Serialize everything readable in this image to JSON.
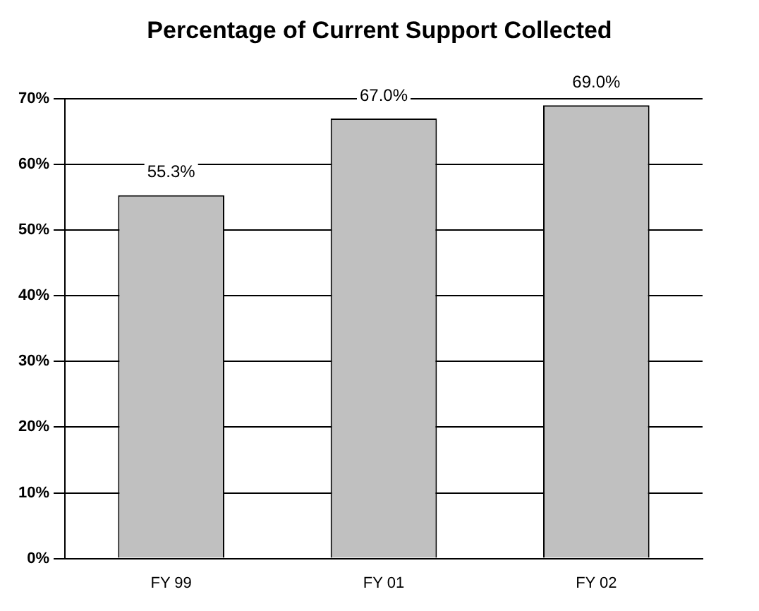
{
  "chart_data": {
    "type": "bar",
    "title": "Percentage of Current Support Collected",
    "categories": [
      "FY 99",
      "FY 01",
      "FY 02"
    ],
    "values": [
      55.3,
      67.0,
      69.0
    ],
    "value_labels": [
      "55.3%",
      "67.0%",
      "69.0%"
    ],
    "color": "#c0c0c0",
    "ylim": [
      0,
      70
    ],
    "yticks": [
      {
        "value": 0,
        "label": "0%"
      },
      {
        "value": 10,
        "label": "10%"
      },
      {
        "value": 20,
        "label": "20%"
      },
      {
        "value": 30,
        "label": "30%"
      },
      {
        "value": 40,
        "label": "40%"
      },
      {
        "value": 50,
        "label": "50%"
      },
      {
        "value": 60,
        "label": "60%"
      },
      {
        "value": 70,
        "label": "70%"
      }
    ],
    "grid": "y",
    "legend": false
  }
}
